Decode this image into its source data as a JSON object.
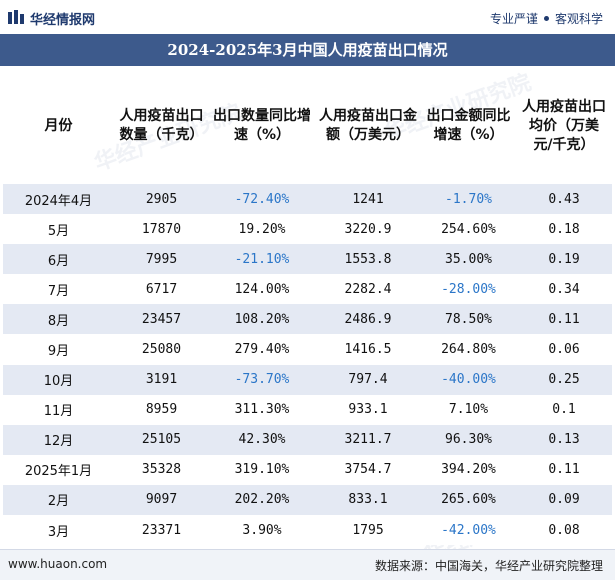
{
  "header": {
    "brand": "华经情报网",
    "tagline_left": "专业严谨",
    "tagline_right": "客观科学",
    "colors": {
      "title_bg": "#3d5a8c",
      "stripe": "#e4e9f3",
      "negative": "#2b76c8"
    }
  },
  "title": "2024-2025年3月中国人用疫苗出口情况",
  "table": {
    "columns": [
      "月份",
      "人用疫苗出口数量（千克）",
      "出口数量同比增速（%）",
      "人用疫苗出口金额（万美元）",
      "出口金额同比增速（%）",
      "人用疫苗出口均价（万美元/千克）"
    ],
    "rows": [
      {
        "month": "2024年4月",
        "qty": "2905",
        "qty_yoy": "-72.40%",
        "amount": "1241",
        "amount_yoy": "-1.70%",
        "price": "0.43"
      },
      {
        "month": "5月",
        "qty": "17870",
        "qty_yoy": "19.20%",
        "amount": "3220.9",
        "amount_yoy": "254.60%",
        "price": "0.18"
      },
      {
        "month": "6月",
        "qty": "7995",
        "qty_yoy": "-21.10%",
        "amount": "1553.8",
        "amount_yoy": "35.00%",
        "price": "0.19"
      },
      {
        "month": "7月",
        "qty": "6717",
        "qty_yoy": "124.00%",
        "amount": "2282.4",
        "amount_yoy": "-28.00%",
        "price": "0.34"
      },
      {
        "month": "8月",
        "qty": "23457",
        "qty_yoy": "108.20%",
        "amount": "2486.9",
        "amount_yoy": "78.50%",
        "price": "0.11"
      },
      {
        "month": "9月",
        "qty": "25080",
        "qty_yoy": "279.40%",
        "amount": "1416.5",
        "amount_yoy": "264.80%",
        "price": "0.06"
      },
      {
        "month": "10月",
        "qty": "3191",
        "qty_yoy": "-73.70%",
        "amount": "797.4",
        "amount_yoy": "-40.00%",
        "price": "0.25"
      },
      {
        "month": "11月",
        "qty": "8959",
        "qty_yoy": "311.30%",
        "amount": "933.1",
        "amount_yoy": "7.10%",
        "price": "0.1"
      },
      {
        "month": "12月",
        "qty": "25105",
        "qty_yoy": "42.30%",
        "amount": "3211.7",
        "amount_yoy": "96.30%",
        "price": "0.13"
      },
      {
        "month": "2025年1月",
        "qty": "35328",
        "qty_yoy": "319.10%",
        "amount": "3754.7",
        "amount_yoy": "394.20%",
        "price": "0.11"
      },
      {
        "month": "2月",
        "qty": "9097",
        "qty_yoy": "202.20%",
        "amount": "833.1",
        "amount_yoy": "265.60%",
        "price": "0.09"
      },
      {
        "month": "3月",
        "qty": "23371",
        "qty_yoy": "3.90%",
        "amount": "1795",
        "amount_yoy": "-42.00%",
        "price": "0.08"
      }
    ]
  },
  "footer": {
    "site": "www.huaon.com",
    "source": "数据来源：中国海关，华经产业研究院整理"
  },
  "watermarks": [
    "华经产业研究院",
    "华经产业研究院",
    "华经产业研究院",
    "华经产业研究院"
  ]
}
